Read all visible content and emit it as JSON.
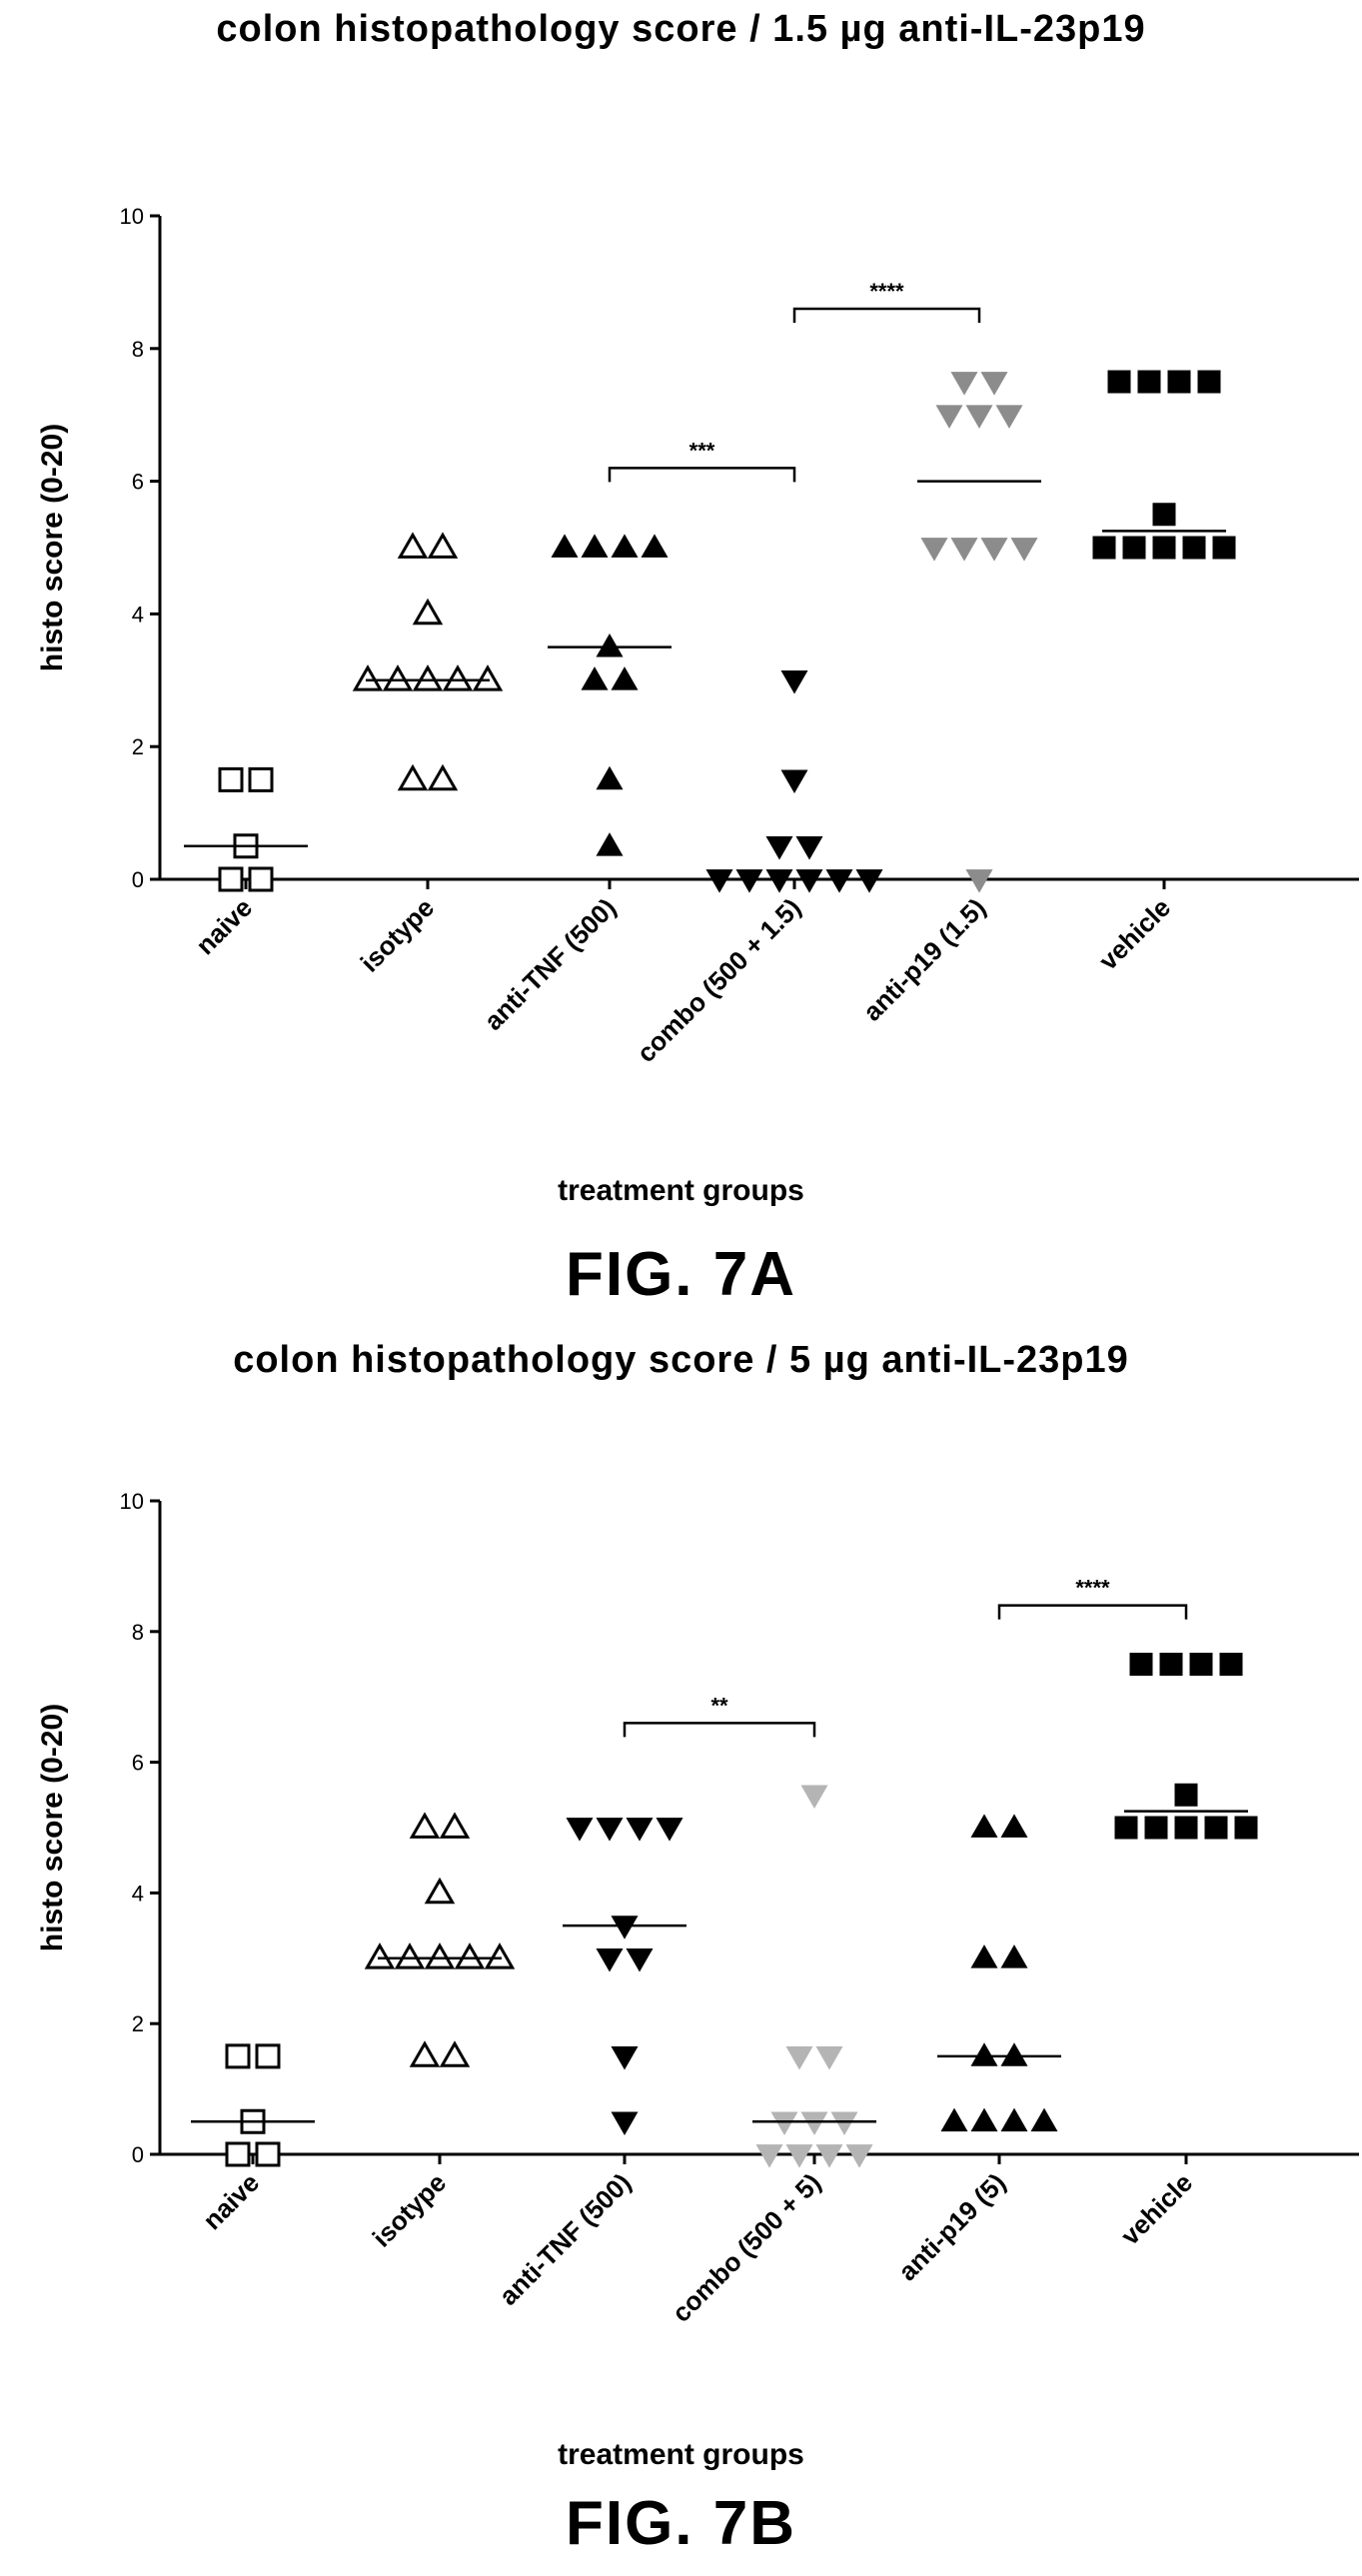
{
  "chart_data": [
    {
      "type": "scatter",
      "title": "colon histopathology score / 1.5 µg anti-IL-23p19",
      "xlabel": "treatment groups",
      "ylabel": "histo score (0-20)",
      "ylim": [
        0,
        10
      ],
      "yticks": [
        0,
        2,
        4,
        6,
        8,
        10
      ],
      "figure_label": "FIG. 7A",
      "groups": [
        {
          "name": "naive",
          "marker": "square-open",
          "color": "#000000",
          "values": [
            1.5,
            1.5,
            0.5,
            0,
            0
          ],
          "median": 0.5
        },
        {
          "name": "isotype",
          "marker": "triangle-up-open",
          "color": "#000000",
          "values": [
            5,
            5,
            4,
            3,
            3,
            3,
            3,
            3,
            1.5,
            1.5
          ],
          "median": 3
        },
        {
          "name": "anti-TNF (500)",
          "marker": "triangle-up",
          "color": "#000000",
          "values": [
            5,
            5,
            5,
            5,
            3.5,
            3,
            3,
            1.5,
            0.5
          ],
          "median": 3.5
        },
        {
          "name": "combo (500 + 1.5)",
          "marker": "triangle-down",
          "color": "#000000",
          "values": [
            3,
            1.5,
            0.5,
            0.5,
            0,
            0,
            0,
            0,
            0,
            0
          ],
          "median": 0
        },
        {
          "name": "anti-p19 (1.5)",
          "marker": "triangle-down",
          "color": "#8c8c8c",
          "values": [
            7.5,
            7.5,
            7,
            7,
            7,
            5,
            5,
            5,
            5,
            0
          ],
          "median": 6
        },
        {
          "name": "vehicle",
          "marker": "square",
          "color": "#000000",
          "values": [
            7.5,
            7.5,
            7.5,
            7.5,
            5.5,
            5,
            5,
            5,
            5,
            5
          ],
          "median": 5.25
        }
      ],
      "brackets": [
        {
          "from": "anti-TNF (500)",
          "to": "combo (500 + 1.5)",
          "y": 6.2,
          "label": "***"
        },
        {
          "from": "combo (500 + 1.5)",
          "to": "anti-p19 (1.5)",
          "y": 8.6,
          "label": "****"
        }
      ]
    },
    {
      "type": "scatter",
      "title": "colon histopathology score / 5 µg anti-IL-23p19",
      "xlabel": "treatment groups",
      "ylabel": "histo score (0-20)",
      "ylim": [
        0,
        10
      ],
      "yticks": [
        0,
        2,
        4,
        6,
        8,
        10
      ],
      "figure_label": "FIG. 7B",
      "groups": [
        {
          "name": "naive",
          "marker": "square-open",
          "color": "#000000",
          "values": [
            1.5,
            1.5,
            0.5,
            0,
            0
          ],
          "median": 0.5
        },
        {
          "name": "isotype",
          "marker": "triangle-up-open",
          "color": "#000000",
          "values": [
            5,
            5,
            4,
            3,
            3,
            3,
            3,
            3,
            1.5,
            1.5
          ],
          "median": 3
        },
        {
          "name": "anti-TNF (500)",
          "marker": "triangle-down",
          "color": "#000000",
          "values": [
            5,
            5,
            5,
            5,
            3.5,
            3,
            3,
            1.5,
            0.5
          ],
          "median": 3.5
        },
        {
          "name": "combo (500 + 5)",
          "marker": "triangle-down",
          "color": "#b4b4b4",
          "values": [
            5.5,
            1.5,
            1.5,
            0.5,
            0.5,
            0.5,
            0,
            0,
            0,
            0
          ],
          "median": 0.5
        },
        {
          "name": "anti-p19 (5)",
          "marker": "triangle-up",
          "color": "#000000",
          "values": [
            5,
            5,
            3,
            3,
            1.5,
            1.5,
            0.5,
            0.5,
            0.5,
            0.5
          ],
          "median": 1.5
        },
        {
          "name": "vehicle",
          "marker": "square",
          "color": "#000000",
          "values": [
            7.5,
            7.5,
            7.5,
            7.5,
            5.5,
            5,
            5,
            5,
            5,
            5
          ],
          "median": 5.25
        }
      ],
      "brackets": [
        {
          "from": "anti-TNF (500)",
          "to": "combo (500 + 5)",
          "y": 6.6,
          "label": "**"
        },
        {
          "from": "anti-p19 (5)",
          "to": "vehicle",
          "y": 8.4,
          "label": "****"
        }
      ]
    }
  ]
}
